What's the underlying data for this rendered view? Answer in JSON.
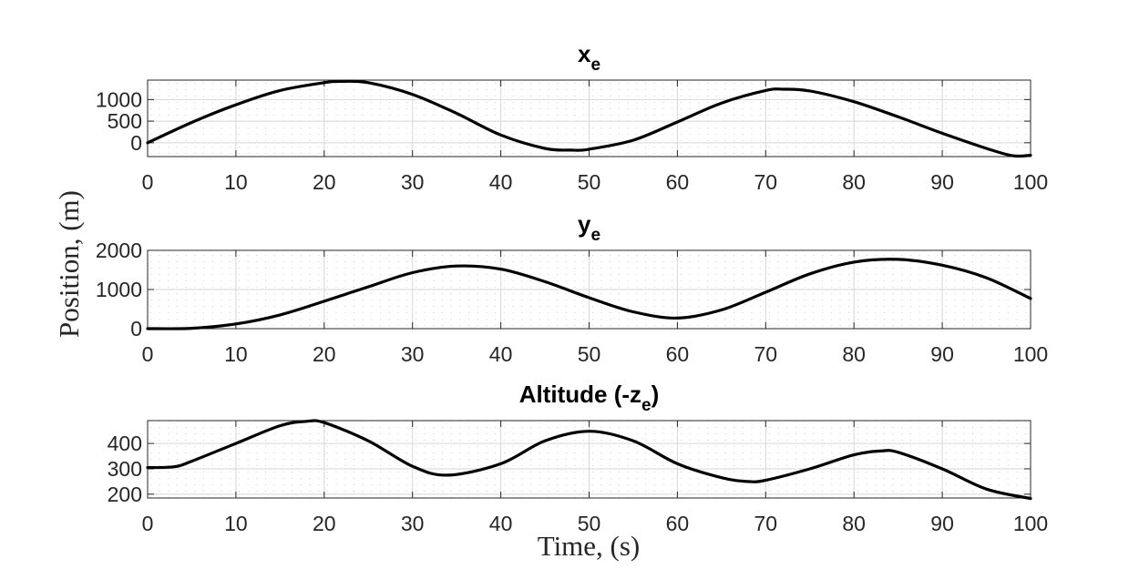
{
  "figure": {
    "ylabel": "Position, (m)",
    "xlabel": "Time, (s)"
  },
  "chart_data": [
    {
      "type": "line",
      "title": "x",
      "title_subscript": "e",
      "xlim": [
        0,
        100
      ],
      "ylim": [
        -320,
        1450
      ],
      "x_ticks": [
        0,
        10,
        20,
        30,
        40,
        50,
        60,
        70,
        80,
        90,
        100
      ],
      "y_ticks": [
        0,
        500,
        1000
      ],
      "grid": "minor-dotted",
      "line_color": "#000000",
      "series": [
        {
          "x": [
            0,
            5,
            10,
            15,
            20,
            22,
            25,
            30,
            35,
            40,
            45,
            48,
            50,
            55,
            60,
            65,
            70,
            72,
            75,
            80,
            85,
            90,
            95,
            98,
            100
          ],
          "values": [
            0,
            470,
            880,
            1210,
            1390,
            1420,
            1390,
            1120,
            680,
            180,
            -130,
            -170,
            -150,
            60,
            480,
            920,
            1210,
            1240,
            1200,
            950,
            600,
            220,
            -130,
            -300,
            -290
          ]
        }
      ]
    },
    {
      "type": "line",
      "title": "y",
      "title_subscript": "e",
      "xlim": [
        0,
        100
      ],
      "ylim": [
        0,
        2000
      ],
      "x_ticks": [
        0,
        10,
        20,
        30,
        40,
        50,
        60,
        70,
        80,
        90,
        100
      ],
      "y_ticks": [
        0,
        1000,
        2000
      ],
      "grid": "minor-dotted",
      "line_color": "#000000",
      "series": [
        {
          "x": [
            0,
            5,
            10,
            15,
            20,
            25,
            30,
            35,
            40,
            45,
            50,
            55,
            60,
            65,
            70,
            75,
            80,
            85,
            90,
            95,
            100
          ],
          "values": [
            0,
            10,
            120,
            350,
            700,
            1070,
            1430,
            1600,
            1520,
            1200,
            790,
            430,
            270,
            480,
            930,
            1400,
            1700,
            1770,
            1620,
            1300,
            770
          ]
        }
      ]
    },
    {
      "type": "line",
      "title": "Altitude (-z",
      "title_subscript": "e",
      "title_suffix": ")",
      "xlim": [
        0,
        100
      ],
      "ylim": [
        185,
        490
      ],
      "x_ticks": [
        0,
        10,
        20,
        30,
        40,
        50,
        60,
        70,
        80,
        90,
        100
      ],
      "y_ticks": [
        200,
        300,
        400
      ],
      "grid": "minor-dotted",
      "line_color": "#000000",
      "series": [
        {
          "x": [
            0,
            3,
            5,
            10,
            15,
            18,
            20,
            25,
            30,
            34,
            40,
            45,
            50,
            55,
            60,
            65,
            68,
            70,
            75,
            80,
            83,
            85,
            90,
            95,
            100
          ],
          "values": [
            305,
            308,
            330,
            400,
            470,
            487,
            482,
            410,
            310,
            275,
            320,
            410,
            448,
            410,
            320,
            265,
            250,
            255,
            300,
            355,
            370,
            365,
            300,
            220,
            183
          ]
        }
      ]
    }
  ]
}
